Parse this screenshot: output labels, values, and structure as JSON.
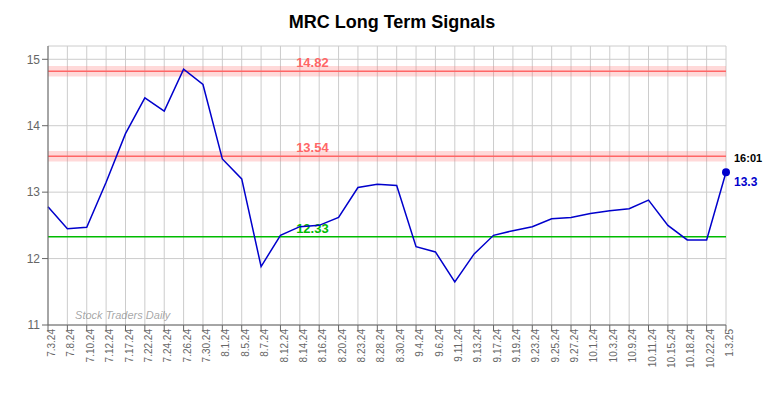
{
  "chart_data": {
    "type": "line",
    "title": "MRC Long Term Signals",
    "categories": [
      "7.3.24",
      "7.8.24",
      "7.10.24",
      "7.12.24",
      "7.17.24",
      "7.22.24",
      "7.24.24",
      "7.26.24",
      "7.30.24",
      "8.1.24",
      "8.5.24",
      "8.7.24",
      "8.12.24",
      "8.14.24",
      "8.16.24",
      "8.20.24",
      "8.23.24",
      "8.28.24",
      "8.30.24",
      "9.4.24",
      "9.6.24",
      "9.11.24",
      "9.13.24",
      "9.17.24",
      "9.19.24",
      "9.23.24",
      "9.25.24",
      "9.27.24",
      "10.1.24",
      "10.3.24",
      "10.9.24",
      "10.11.24",
      "10.15.24",
      "10.18.24",
      "10.22.24",
      "1.3.25"
    ],
    "values": [
      12.78,
      12.45,
      12.47,
      13.15,
      13.88,
      14.42,
      14.22,
      14.85,
      14.62,
      13.5,
      13.2,
      11.88,
      12.35,
      12.48,
      12.5,
      12.62,
      13.07,
      13.12,
      13.1,
      12.18,
      12.1,
      11.65,
      12.07,
      12.35,
      12.42,
      12.48,
      12.6,
      12.62,
      12.68,
      12.72,
      12.75,
      12.88,
      12.5,
      12.28,
      12.28,
      13.3
    ],
    "color": "#0000cc",
    "ylim": [
      11.0,
      15.2
    ],
    "yticks": [
      11,
      12,
      13,
      14,
      15
    ],
    "grid": true,
    "reference_lines": [
      {
        "value": 12.33,
        "label": "12.33",
        "color": "#00bb00"
      },
      {
        "value": 13.54,
        "label": "13.54",
        "color": "#ff6666"
      },
      {
        "value": 14.82,
        "label": "14.82",
        "color": "#ff6666"
      }
    ],
    "bands": [
      {
        "from": 13.46,
        "to": 13.62,
        "color": "#ff6666"
      },
      {
        "from": 14.74,
        "to": 14.9,
        "color": "#ff6666"
      }
    ],
    "last_point": {
      "category": "1.3.25",
      "value": 13.3,
      "label": "16:01",
      "value_label": "13.3"
    },
    "watermark": "Stock Traders Daily"
  }
}
